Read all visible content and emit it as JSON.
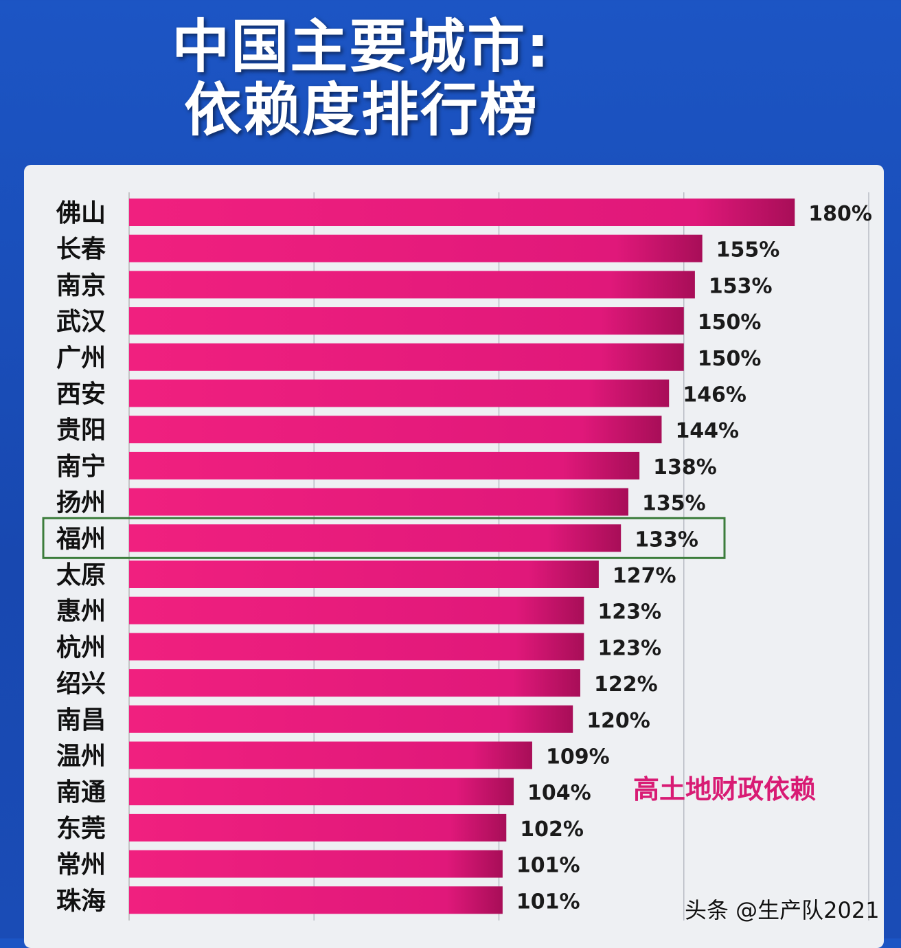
{
  "chart_data": {
    "type": "bar",
    "orientation": "horizontal",
    "title": "中国主要城市:",
    "subtitle": "依赖度排行榜",
    "categories": [
      "佛山",
      "长春",
      "南京",
      "武汉",
      "广州",
      "西安",
      "贵阳",
      "南宁",
      "扬州",
      "福州",
      "太原",
      "惠州",
      "杭州",
      "绍兴",
      "南昌",
      "温州",
      "南通",
      "东莞",
      "常州",
      "珠海"
    ],
    "values": [
      180,
      155,
      153,
      150,
      150,
      146,
      144,
      138,
      135,
      133,
      127,
      123,
      123,
      122,
      120,
      109,
      104,
      102,
      101,
      101
    ],
    "value_labels": [
      "180%",
      "155%",
      "153%",
      "150%",
      "150%",
      "146%",
      "144%",
      "138%",
      "135%",
      "133%",
      "127%",
      "123%",
      "123%",
      "122%",
      "120%",
      "109%",
      "104%",
      "102%",
      "101%",
      "101%"
    ],
    "unit": "%",
    "xlim": [
      0,
      200
    ],
    "grid": true,
    "highlighted_category": "福州",
    "annotation": "高土地财政依赖",
    "bar_color": "#e8197c",
    "highlight_color": "#3c7d3c"
  },
  "watermark": "头条 @生产队2021"
}
